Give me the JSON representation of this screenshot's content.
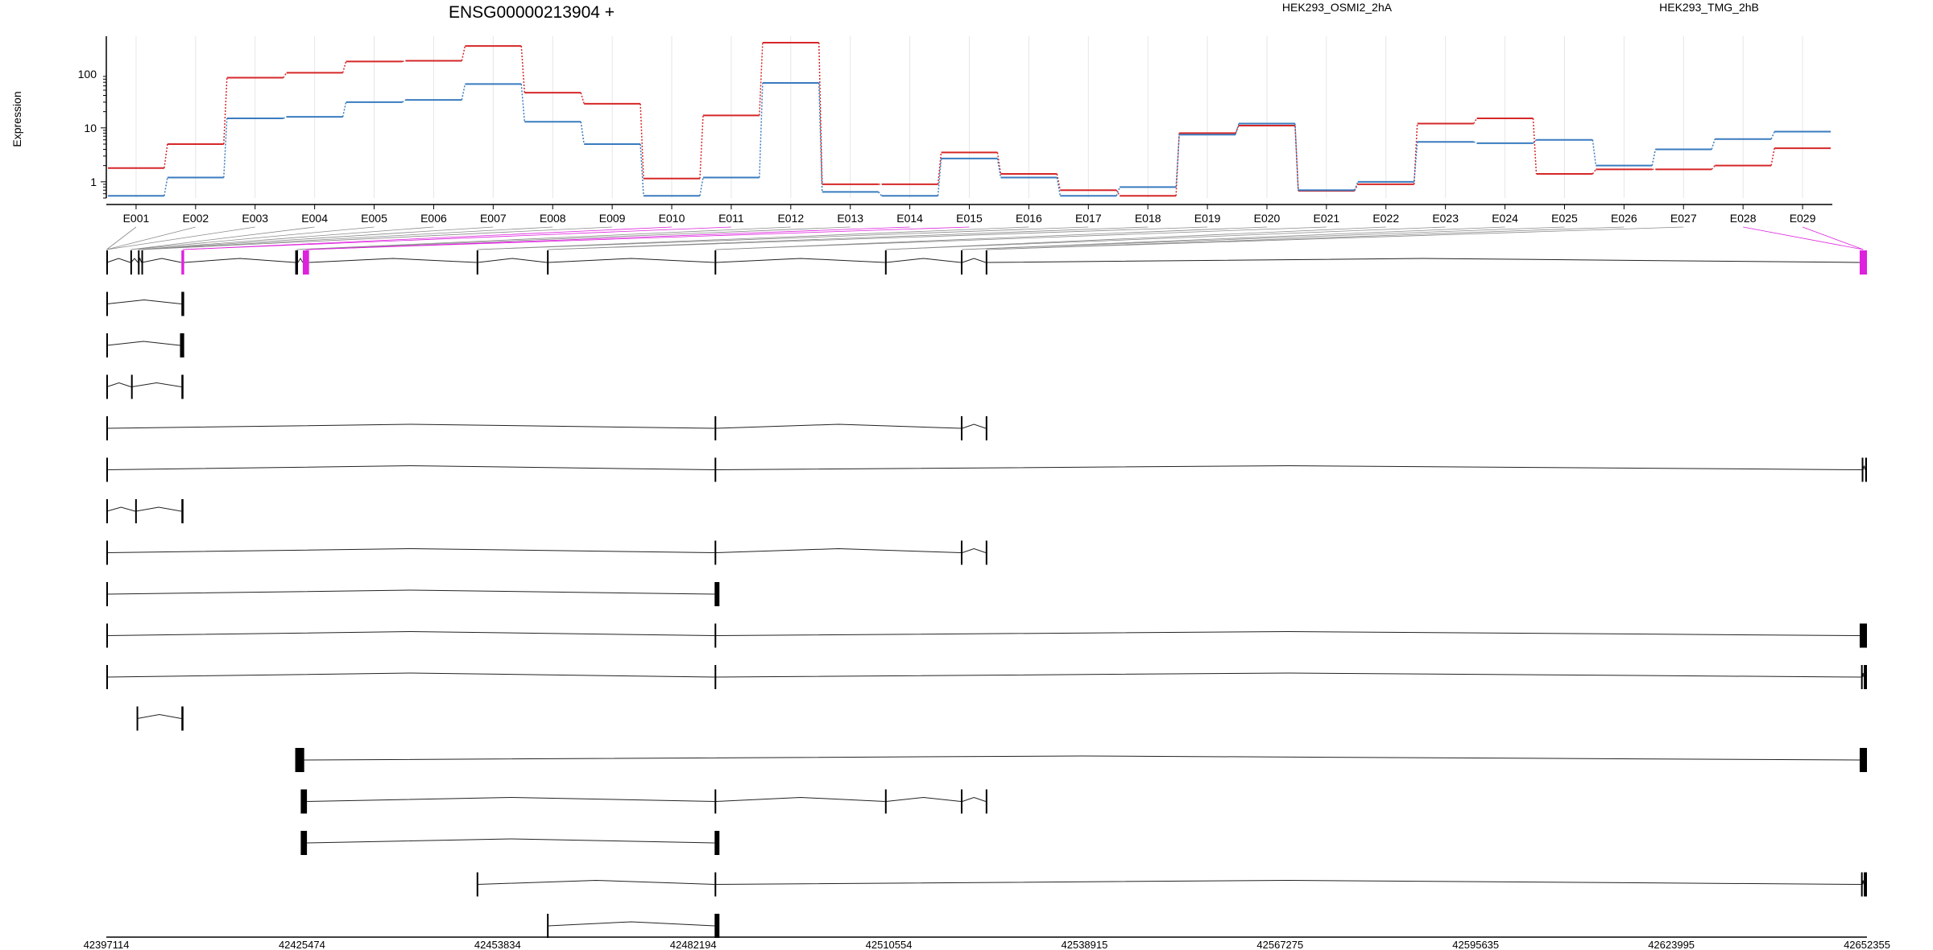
{
  "title": "ENSG00000213904 +",
  "ylabel": "Expression",
  "colors": {
    "HEK293_OSMI2_2hA": "#d62728",
    "HEK293_TMG_2hB": "#3a7bbf",
    "exon_highlight": "#dd22dd",
    "exon": "#000000",
    "connector": "#8a8a8a",
    "gridline": "#e6e6e6"
  },
  "chart_data": {
    "type": "line",
    "title": "ENSG00000213904 +",
    "ylabel": "Expression",
    "yscale": "log",
    "ylim": [
      0.5,
      500
    ],
    "yticks": [
      1,
      10,
      100
    ],
    "ytick_labels": [
      "1",
      "10",
      "100"
    ],
    "grid": true,
    "legend_placement": "top",
    "categories": [
      "E001",
      "E002",
      "E003",
      "E004",
      "E005",
      "E006",
      "E007",
      "E008",
      "E009",
      "E010",
      "E011",
      "E012",
      "E013",
      "E014",
      "E015",
      "E016",
      "E017",
      "E018",
      "E019",
      "E020",
      "E021",
      "E022",
      "E023",
      "E024",
      "E025",
      "E026",
      "E027",
      "E028",
      "E029"
    ],
    "series": [
      {
        "name": "HEK293_OSMI2_2hA",
        "color": "#d62728",
        "values": [
          1.8,
          5,
          85,
          105,
          170,
          175,
          330,
          45,
          28,
          1.15,
          17,
          380,
          0.9,
          0.9,
          3.5,
          1.4,
          0.7,
          0.55,
          8,
          11,
          0.68,
          0.9,
          12,
          15,
          1.4,
          1.7,
          1.7,
          2,
          4.2
        ]
      },
      {
        "name": "HEK293_TMG_2hB",
        "color": "#3a7bbf",
        "values": [
          0.55,
          1.2,
          15,
          16,
          30,
          33,
          65,
          13,
          5,
          0.55,
          1.2,
          68,
          0.65,
          0.55,
          2.7,
          1.2,
          0.55,
          0.8,
          7.5,
          12,
          0.7,
          1,
          5.5,
          5.2,
          6,
          2,
          4,
          6.2,
          8.5
        ]
      }
    ]
  },
  "genome_axis": {
    "start": 42397114,
    "end": 42652355,
    "tick_labels": [
      "42397114",
      "42425474",
      "42453834",
      "42482194",
      "42510554",
      "42538915",
      "42567275",
      "42595635",
      "42623995",
      "42652355"
    ]
  },
  "transcripts": [
    {
      "exons": [
        [
          42397114,
          42397200
        ],
        [
          42400600,
          42400700
        ],
        [
          42401700,
          42401800
        ],
        [
          42402200,
          42402300
        ],
        [
          42408000,
          42408400
        ],
        [
          42424500,
          42424900
        ],
        [
          42425600,
          42426500
        ],
        [
          42450800,
          42450950
        ],
        [
          42461000,
          42461150
        ],
        [
          42485300,
          42485500
        ],
        [
          42510000,
          42510150
        ],
        [
          42521000,
          42521200
        ],
        [
          42524600,
          42524800
        ],
        [
          42651300,
          42652355
        ]
      ],
      "highlight": [
        [
          42408000,
          42408400
        ],
        [
          42425600,
          42426500
        ],
        [
          42651300,
          42652355
        ]
      ]
    },
    {
      "exons": [
        [
          42397114,
          42397200
        ],
        [
          42408000,
          42408400
        ]
      ]
    },
    {
      "exons": [
        [
          42397114,
          42397200
        ],
        [
          42407800,
          42408400
        ]
      ]
    },
    {
      "exons": [
        [
          42397114,
          42397200
        ],
        [
          42400700,
          42400800
        ],
        [
          42408000,
          42408300
        ]
      ]
    },
    {
      "exons": [
        [
          42397114,
          42397200
        ],
        [
          42485300,
          42485500
        ],
        [
          42521000,
          42521200
        ],
        [
          42524600,
          42524800
        ]
      ]
    },
    {
      "exons": [
        [
          42397114,
          42397200
        ],
        [
          42485300,
          42485500
        ],
        [
          42651600,
          42651800
        ],
        [
          42652100,
          42652355
        ]
      ]
    },
    {
      "exons": [
        [
          42397114,
          42397200
        ],
        [
          42401300,
          42401400
        ],
        [
          42408000,
          42408300
        ]
      ]
    },
    {
      "exons": [
        [
          42397114,
          42397200
        ],
        [
          42485300,
          42485500
        ],
        [
          42521000,
          42521200
        ],
        [
          42524600,
          42524800
        ]
      ]
    },
    {
      "exons": [
        [
          42397114,
          42397200
        ],
        [
          42485300,
          42486000
        ]
      ]
    },
    {
      "exons": [
        [
          42397114,
          42397200
        ],
        [
          42485300,
          42485500
        ],
        [
          42651300,
          42652355
        ]
      ]
    },
    {
      "exons": [
        [
          42397114,
          42397200
        ],
        [
          42485300,
          42485500
        ],
        [
          42651500,
          42651700
        ],
        [
          42651900,
          42652355
        ]
      ]
    },
    {
      "exons": [
        [
          42401500,
          42401600
        ],
        [
          42408000,
          42408300
        ]
      ]
    },
    {
      "exons": [
        [
          42424500,
          42425800
        ],
        [
          42651300,
          42652355
        ]
      ]
    },
    {
      "exons": [
        [
          42425300,
          42426200
        ],
        [
          42485300,
          42485500
        ],
        [
          42510000,
          42510150
        ],
        [
          42521000,
          42521200
        ],
        [
          42524600,
          42524800
        ]
      ]
    },
    {
      "exons": [
        [
          42425300,
          42426200
        ],
        [
          42485300,
          42486000
        ]
      ]
    },
    {
      "exons": [
        [
          42450800,
          42450950
        ],
        [
          42485300,
          42485500
        ],
        [
          42651500,
          42651700
        ],
        [
          42651900,
          42652355
        ]
      ]
    },
    {
      "exons": [
        [
          42461000,
          42461150
        ],
        [
          42485300,
          42486000
        ]
      ]
    }
  ]
}
